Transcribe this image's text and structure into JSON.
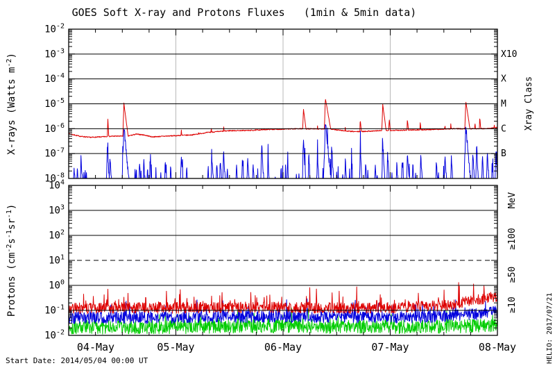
{
  "title": "GOES Soft X-ray and Protons Fluxes   (1min & 5min data)",
  "footer": {
    "start_date": "Start Date: 2014/05/04 00:00 UT"
  },
  "watermark": "HELIO: 2017/07/21",
  "colors": {
    "xray_long": "#dd0000",
    "xray_short": "#0000dd",
    "p10": "#dd0000",
    "p50": "#0000dd",
    "p100": "#00cc00",
    "day_grid": "#b8b8b8",
    "frame": "#000000"
  },
  "x_axis": {
    "tick_labels": [
      "04-May",
      "05-May",
      "06-May",
      "07-May",
      "08-May"
    ],
    "range_days": [
      0,
      4
    ],
    "minor_ticks_per_day": 4
  },
  "chart_data": [
    {
      "type": "line",
      "name": "xray",
      "title": "GOES Soft X-ray flux",
      "ylabel_parts": [
        {
          "t": "X-rays (Watts m"
        },
        {
          "t": "-2",
          "sup": true
        },
        {
          "t": ")"
        }
      ],
      "y_log_range": [
        -8,
        -2
      ],
      "ytick_exponents": [
        "-2",
        "-3",
        "-4",
        "-5",
        "-6",
        "-7",
        "-8"
      ],
      "gridline_logs": [
        -3,
        -4,
        -5,
        -6,
        -7
      ],
      "dashed_gridline_logs": [],
      "right_axis": {
        "title": "Xray Class",
        "labels": [
          {
            "text": "X10",
            "log": -3
          },
          {
            "text": "X",
            "log": -4
          },
          {
            "text": "M",
            "log": -5
          },
          {
            "text": "C",
            "log": -6
          },
          {
            "text": "B",
            "log": -7
          }
        ]
      },
      "series": [
        {
          "name": "xray-short-wave",
          "color_key": "xray_short",
          "baseline_log": -8.3,
          "noise_amp": 0.16,
          "seed": 42,
          "spike_prob": 0.05,
          "spike_amp": 0.9,
          "default_rise": 0.005,
          "default_decay": 0.013,
          "spikes": [
            [
              0.05,
              -7.45
            ],
            [
              0.08,
              -7.6
            ],
            [
              0.115,
              -7.15
            ],
            [
              0.14,
              -7.7
            ],
            [
              0.36,
              -6.65
            ],
            [
              0.385,
              -7.1
            ],
            [
              0.515,
              -5.9,
              0.007,
              0.022
            ],
            [
              0.63,
              -7.6
            ],
            [
              0.66,
              -7.4
            ],
            [
              0.7,
              -7.25
            ],
            [
              0.735,
              -7.5
            ],
            [
              0.76,
              -7.2
            ],
            [
              0.9,
              -7.35
            ],
            [
              0.95,
              -7.55
            ],
            [
              1.05,
              -6.95
            ],
            [
              1.1,
              -7.45
            ],
            [
              1.3,
              -7.5
            ],
            [
              1.335,
              -7.05
            ],
            [
              1.38,
              -7.35
            ],
            [
              1.415,
              -7.15
            ],
            [
              1.445,
              -6.9
            ],
            [
              1.48,
              -7.45
            ],
            [
              1.565,
              -7.3
            ],
            [
              1.62,
              -7.25
            ],
            [
              1.67,
              -7.05
            ],
            [
              1.72,
              -7.35
            ],
            [
              1.8,
              -6.6
            ],
            [
              1.86,
              -7.25
            ],
            [
              1.98,
              -7.55
            ],
            [
              2.04,
              -7.35
            ],
            [
              2.19,
              -6.45
            ],
            [
              2.24,
              -7.05
            ],
            [
              2.32,
              -6.95
            ],
            [
              2.395,
              -5.7,
              0.007,
              0.022
            ],
            [
              2.455,
              -6.85
            ],
            [
              2.58,
              -7.25
            ],
            [
              2.64,
              -7.45
            ],
            [
              2.72,
              -6.85
            ],
            [
              2.77,
              -7.35
            ],
            [
              2.86,
              -7.45
            ],
            [
              2.93,
              -6.55
            ],
            [
              2.975,
              -6.95
            ],
            [
              3.06,
              -7.35
            ],
            [
              3.11,
              -7.2
            ],
            [
              3.16,
              -6.85
            ],
            [
              3.21,
              -7.35
            ],
            [
              3.285,
              -7.05
            ],
            [
              3.43,
              -7.25
            ],
            [
              3.51,
              -6.95
            ],
            [
              3.57,
              -7.15
            ],
            [
              3.705,
              -5.88,
              0.007,
              0.02
            ],
            [
              3.77,
              -6.95
            ],
            [
              3.805,
              -6.65
            ],
            [
              3.86,
              -7.05
            ],
            [
              3.905,
              -6.85
            ],
            [
              3.95,
              -7.25
            ],
            [
              3.985,
              -6.95
            ]
          ]
        },
        {
          "name": "xray-long-wave",
          "color_key": "xray_long",
          "noise_amp": 0.02,
          "seed": 7,
          "default_rise": 0.006,
          "default_decay": 0.015,
          "baseline_keypoints": [
            [
              0,
              -6.2
            ],
            [
              0.1,
              -6.3
            ],
            [
              0.2,
              -6.35
            ],
            [
              0.3,
              -6.33
            ],
            [
              0.42,
              -6.3
            ],
            [
              0.55,
              -6.3
            ],
            [
              0.63,
              -6.22
            ],
            [
              0.7,
              -6.25
            ],
            [
              0.78,
              -6.33
            ],
            [
              0.9,
              -6.3
            ],
            [
              1,
              -6.28
            ],
            [
              1.15,
              -6.25
            ],
            [
              1.3,
              -6.15
            ],
            [
              1.5,
              -6.08
            ],
            [
              1.7,
              -6.07
            ],
            [
              1.85,
              -6.03
            ],
            [
              2,
              -6.02
            ],
            [
              2.15,
              -6
            ],
            [
              2.45,
              -6.02
            ],
            [
              2.6,
              -6.1
            ],
            [
              2.68,
              -6.12
            ],
            [
              2.8,
              -6.1
            ],
            [
              2.9,
              -6.08
            ],
            [
              3.1,
              -6.06
            ],
            [
              3.35,
              -6.04
            ],
            [
              3.6,
              -6
            ],
            [
              3.9,
              -6
            ],
            [
              4,
              -5.95
            ]
          ],
          "flares": [
            [
              0.365,
              -5.55,
              0.006,
              0.012
            ],
            [
              0.515,
              -4.98,
              0.007,
              0.03
            ],
            [
              1.05,
              -6.0,
              0.006,
              0.02
            ],
            [
              1.21,
              -6.05,
              0.005,
              0.015
            ],
            [
              1.33,
              -5.88,
              0.006,
              0.015
            ],
            [
              1.445,
              -5.85,
              0.005,
              0.018
            ],
            [
              1.56,
              -6.0,
              0.005,
              0.012
            ],
            [
              2.19,
              -5.2,
              0.008,
              0.03
            ],
            [
              2.32,
              -5.8,
              0.005,
              0.015
            ],
            [
              2.395,
              -4.78,
              0.008,
              0.04
            ],
            [
              2.58,
              -5.92,
              0.005,
              0.015
            ],
            [
              2.72,
              -5.62,
              0.007,
              0.022
            ],
            [
              2.93,
              -5.02,
              0.008,
              0.03
            ],
            [
              2.99,
              -5.6,
              0.006,
              0.025
            ],
            [
              3.16,
              -5.62,
              0.008,
              0.022
            ],
            [
              3.28,
              -5.7,
              0.006,
              0.018
            ],
            [
              3.43,
              -5.88,
              0.005,
              0.015
            ],
            [
              3.51,
              -5.8,
              0.007,
              0.02
            ],
            [
              3.565,
              -5.78,
              0.005,
              0.018
            ],
            [
              3.705,
              -4.9,
              0.008,
              0.035
            ],
            [
              3.79,
              -5.72,
              0.005,
              0.02
            ],
            [
              3.835,
              -5.52,
              0.006,
              0.02
            ],
            [
              3.91,
              -5.85,
              0.005,
              0.015
            ],
            [
              3.97,
              -5.8,
              0.005,
              0.015
            ]
          ]
        }
      ]
    },
    {
      "type": "line",
      "name": "protons",
      "title": "GOES Proton flux",
      "ylabel_parts": [
        {
          "t": "Protons (cm"
        },
        {
          "t": "-2",
          "sup": true
        },
        {
          "t": "s"
        },
        {
          "t": "-1",
          "sup": true
        },
        {
          "t": "sr"
        },
        {
          "t": "-1",
          "sup": true
        },
        {
          "t": ")"
        }
      ],
      "y_log_range": [
        -2,
        4
      ],
      "ytick_exponents": [
        "4",
        "3",
        "2",
        "1",
        "0",
        "-1",
        "-2"
      ],
      "gridline_logs": [
        3,
        2,
        0,
        -1
      ],
      "dashed_gridline_logs": [
        1
      ],
      "right_axis": {
        "title": "",
        "labels": [
          {
            "text": "MeV",
            "log": 3.4
          },
          {
            "text": "≥100",
            "log": 1.86,
            "color_key": "p100"
          },
          {
            "text": "≥50",
            "log": 0.43,
            "color_key": "p50"
          },
          {
            "text": "≥10",
            "log": -0.78,
            "color_key": "p10"
          }
        ]
      },
      "series": [
        {
          "name": "protons-ge100mev",
          "color_key": "p100",
          "noise_amp": 0.28,
          "seed": 101,
          "spike_prob": 0.06,
          "spike_amp": 0.25,
          "trend_keypoints": [
            [
              0,
              -1.68
            ],
            [
              1,
              -1.66
            ],
            [
              2,
              -1.63
            ],
            [
              3,
              -1.66
            ],
            [
              4,
              -1.62
            ]
          ]
        },
        {
          "name": "protons-ge50mev",
          "color_key": "p50",
          "noise_amp": 0.24,
          "seed": 55,
          "spike_prob": 0.06,
          "spike_amp": 0.28,
          "trend_keypoints": [
            [
              0,
              -1.3
            ],
            [
              1,
              -1.28
            ],
            [
              2,
              -1.25
            ],
            [
              3,
              -1.28
            ],
            [
              3.5,
              -1.25
            ],
            [
              3.8,
              -1.15
            ],
            [
              4,
              -1.05
            ]
          ]
        },
        {
          "name": "protons-ge10mev",
          "color_key": "p10",
          "noise_amp": 0.22,
          "seed": 9,
          "spike_prob": 0.07,
          "spike_amp": 0.35,
          "trend_keypoints": [
            [
              0,
              -0.92
            ],
            [
              0.5,
              -0.9
            ],
            [
              1,
              -0.9
            ],
            [
              1.5,
              -0.88
            ],
            [
              2,
              -0.88
            ],
            [
              2.5,
              -0.9
            ],
            [
              3,
              -0.9
            ],
            [
              3.3,
              -0.85
            ],
            [
              3.55,
              -0.8
            ],
            [
              3.7,
              -0.65
            ],
            [
              3.85,
              -0.55
            ],
            [
              4,
              -0.45
            ]
          ]
        }
      ]
    }
  ]
}
